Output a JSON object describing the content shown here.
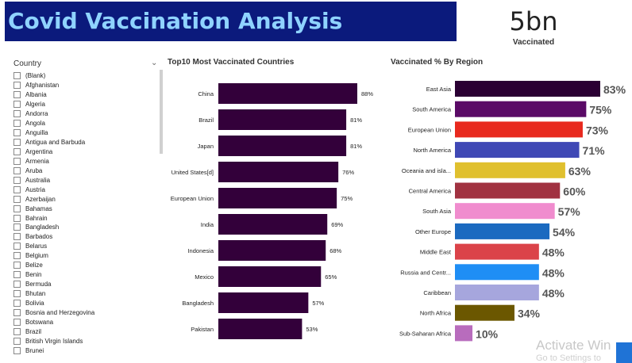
{
  "header": {
    "title": "Covid Vaccination Analysis"
  },
  "kpi": {
    "value": "5bn",
    "label": "Vaccinated"
  },
  "slicer": {
    "title": "Country",
    "items": [
      "(Blank)",
      "Afghanistan",
      "Albania",
      "Algeria",
      "Andorra",
      "Angola",
      "Anguilla",
      "Antigua and Barbuda",
      "Argentina",
      "Armenia",
      "Aruba",
      "Australia",
      "Austria",
      "Azerbaijan",
      "Bahamas",
      "Bahrain",
      "Bangladesh",
      "Barbados",
      "Belarus",
      "Belgium",
      "Belize",
      "Benin",
      "Bermuda",
      "Bhutan",
      "Bolivia",
      "Bosnia and Herzegovina",
      "Botswana",
      "Brazil",
      "British Virgin Islands",
      "Brunei"
    ]
  },
  "chart_data": [
    {
      "type": "bar",
      "orientation": "horizontal",
      "title": "Top10 Most Vaccinated Countries",
      "categories": [
        "China",
        "Brazil",
        "Japan",
        "United States[d]",
        "European Union",
        "India",
        "Indonesia",
        "Mexico",
        "Bangladesh",
        "Pakistan"
      ],
      "values": [
        88,
        81,
        81,
        76,
        75,
        69,
        68,
        65,
        57,
        53
      ],
      "value_labels": [
        "88%",
        "81%",
        "81%",
        "76%",
        "75%",
        "69%",
        "68%",
        "65%",
        "57%",
        "53%"
      ],
      "xlim": [
        0,
        100
      ],
      "color": "#33003a",
      "grid": false,
      "legend": "none"
    },
    {
      "type": "bar",
      "orientation": "horizontal",
      "title": "Vaccinated % By Region",
      "categories": [
        "East Asia",
        "South America",
        "European Union",
        "North America",
        "Oceania and isla...",
        "Central America",
        "South Asia",
        "Other Europe",
        "Middle East",
        "Russia and Centr...",
        "Caribbean",
        "North Africa",
        "Sub-Saharan Africa"
      ],
      "values": [
        83,
        75,
        73,
        71,
        63,
        60,
        57,
        54,
        48,
        48,
        48,
        34,
        10
      ],
      "value_labels": [
        "83%",
        "75%",
        "73%",
        "71%",
        "63%",
        "60%",
        "57%",
        "54%",
        "48%",
        "48%",
        "48%",
        "34%",
        "10%"
      ],
      "colors": [
        "#2a0033",
        "#5a0a66",
        "#e8291e",
        "#3f48b5",
        "#e0c02e",
        "#a13241",
        "#f08cce",
        "#1b6ac0",
        "#db4349",
        "#1f8ef5",
        "#a6a6dd",
        "#6b5700",
        "#b86cbd"
      ],
      "xlim": [
        0,
        100
      ],
      "grid": false,
      "legend": "none"
    }
  ],
  "watermark": {
    "line1": "Activate Win",
    "line2": "Go to Settings to"
  }
}
